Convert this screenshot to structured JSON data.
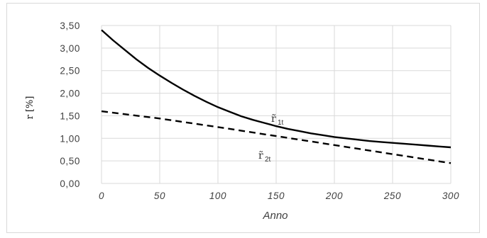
{
  "chart_data": {
    "type": "line",
    "title": "",
    "xlabel": "Anno",
    "ylabel": "r [%]",
    "xlim": [
      0,
      300
    ],
    "ylim": [
      0,
      3.5
    ],
    "xticks": [
      0,
      50,
      100,
      150,
      200,
      250,
      300
    ],
    "xtick_labels": [
      "0",
      "50",
      "100",
      "150",
      "200",
      "250",
      "300"
    ],
    "yticks": [
      0,
      0.5,
      1,
      1.5,
      2,
      2.5,
      3,
      3.5
    ],
    "ytick_labels": [
      "0,00",
      "0,50",
      "1,00",
      "1,50",
      "2,00",
      "2,50",
      "3,00",
      "3,50"
    ],
    "grid": true,
    "legend": "none",
    "series": [
      {
        "label": "r̃",
        "label_sub": "1t",
        "style": "solid",
        "color": "#000000",
        "x": [
          0,
          10,
          20,
          30,
          40,
          50,
          60,
          70,
          80,
          90,
          100,
          110,
          120,
          130,
          140,
          150,
          160,
          170,
          180,
          190,
          200,
          210,
          220,
          230,
          240,
          250,
          260,
          270,
          280,
          290,
          300
        ],
        "y": [
          3.4,
          3.17,
          2.96,
          2.75,
          2.56,
          2.39,
          2.23,
          2.08,
          1.94,
          1.81,
          1.69,
          1.59,
          1.49,
          1.41,
          1.34,
          1.27,
          1.21,
          1.16,
          1.11,
          1.07,
          1.03,
          1.0,
          0.97,
          0.94,
          0.92,
          0.9,
          0.88,
          0.86,
          0.84,
          0.82,
          0.8
        ]
      },
      {
        "label": "r̃",
        "label_sub": "2t",
        "style": "dashed",
        "color": "#000000",
        "x": [
          0,
          50,
          100,
          150,
          200,
          250,
          300
        ],
        "y": [
          1.6,
          1.44,
          1.25,
          1.05,
          0.85,
          0.65,
          0.45
        ]
      }
    ]
  }
}
